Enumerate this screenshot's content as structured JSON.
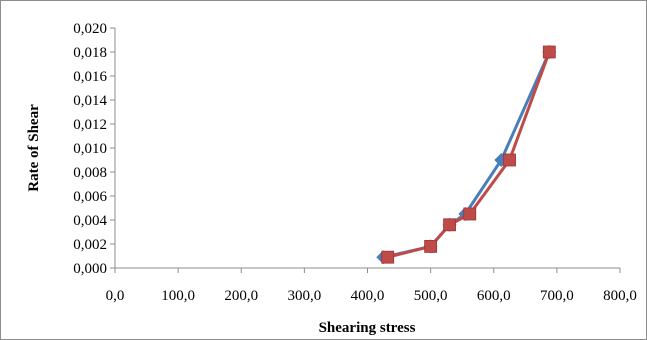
{
  "chart_data": {
    "type": "line",
    "title": "",
    "xlabel": "Shearing stress",
    "ylabel": "Rate of Shear",
    "xlim": [
      0,
      800
    ],
    "ylim": [
      0,
      0.02
    ],
    "x_ticks": [
      "0,0",
      "100,0",
      "200,0",
      "300,0",
      "400,0",
      "500,0",
      "600,0",
      "700,0",
      "800,0"
    ],
    "y_ticks": [
      "0,000",
      "0,002",
      "0,004",
      "0,006",
      "0,008",
      "0,010",
      "0,012",
      "0,014",
      "0,016",
      "0,018",
      "0,020"
    ],
    "grid": false,
    "legend": "none",
    "series": [
      {
        "marker": "diamond",
        "color": "#4a7ebb",
        "points": [
          [
            425,
            0.0009
          ],
          [
            500,
            0.0018
          ],
          [
            530,
            0.0036
          ],
          [
            555,
            0.0045
          ],
          [
            612,
            0.009
          ],
          [
            688,
            0.018
          ]
        ]
      },
      {
        "marker": "square",
        "color": "#be4b48",
        "points": [
          [
            432,
            0.0009
          ],
          [
            500,
            0.0018
          ],
          [
            530,
            0.0036
          ],
          [
            562,
            0.0045
          ],
          [
            625,
            0.009
          ],
          [
            688,
            0.018
          ]
        ]
      }
    ]
  }
}
